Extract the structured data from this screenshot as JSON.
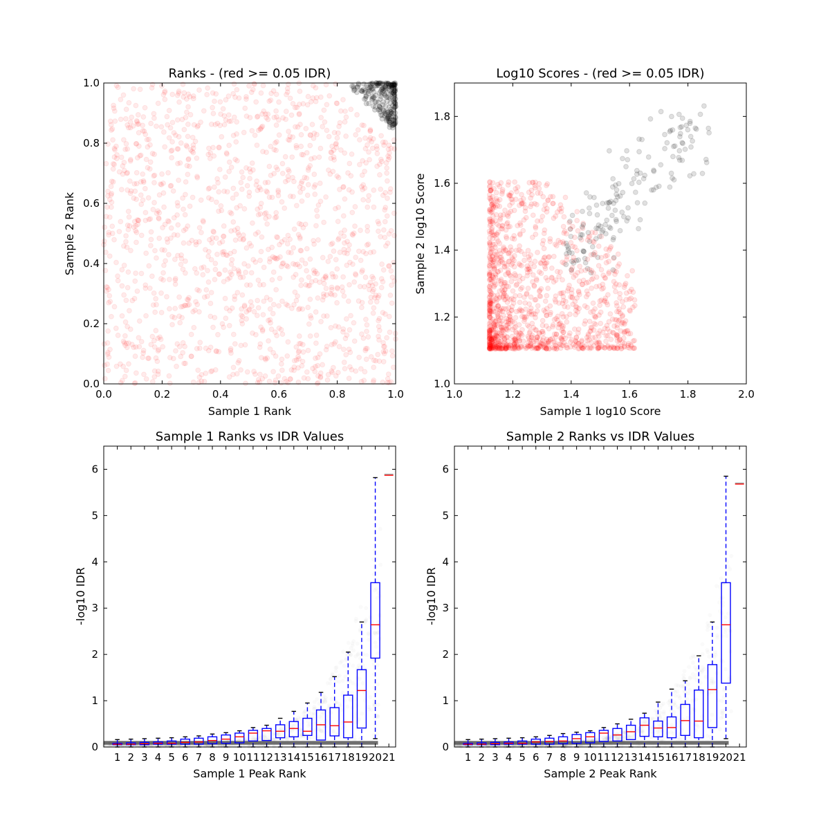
{
  "chart_data": [
    {
      "type": "scatter",
      "title": "Ranks - (red >= 0.05 IDR)",
      "xlabel": "Sample 1 Rank",
      "ylabel": "Sample 2 Rank",
      "xlim": [
        0.0,
        1.0
      ],
      "ylim": [
        0.0,
        1.0
      ],
      "xticks": [
        "0.0",
        "0.2",
        "0.4",
        "0.6",
        "0.8",
        "1.0"
      ],
      "yticks": [
        "0.0",
        "0.2",
        "0.4",
        "0.6",
        "0.8",
        "1.0"
      ],
      "series": [
        {
          "color": "#ff0000",
          "opacity": 0.08,
          "description_values": "uniform over [0,1]x[0,1] excluding top-right corner",
          "region": {
            "x": [
              0.0,
              1.0
            ],
            "y": [
              0.0,
              1.0
            ]
          },
          "count": 1400
        },
        {
          "color": "#000000",
          "opacity": 0.15,
          "region": {
            "x": [
              0.85,
              1.0
            ],
            "y": [
              0.85,
              1.0
            ]
          },
          "count": 260
        }
      ]
    },
    {
      "type": "scatter",
      "title": "Log10 Scores - (red >= 0.05 IDR)",
      "xlabel": "Sample 1 log10 Score",
      "ylabel": "Sample 2 log10 Score",
      "xlim": [
        1.0,
        2.0
      ],
      "ylim": [
        1.0,
        1.9
      ],
      "xticks": [
        "1.0",
        "1.2",
        "1.4",
        "1.6",
        "1.8",
        "2.0"
      ],
      "yticks": [
        "1.0",
        "1.2",
        "1.4",
        "1.6",
        "1.8"
      ],
      "series": [
        {
          "color": "#ff0000",
          "opacity": 0.1,
          "region": {
            "x": [
              1.12,
              1.62
            ],
            "y": [
              1.1,
              1.62
            ]
          },
          "count": 1300
        },
        {
          "color": "#000000",
          "opacity": 0.12,
          "region": {
            "x": [
              1.38,
              1.9
            ],
            "y": [
              1.33,
              1.84
            ]
          },
          "count": 170
        }
      ]
    },
    {
      "type": "box",
      "title": "Sample 1 Ranks vs IDR Values",
      "xlabel": "Sample 1 Peak Rank",
      "ylabel": "-log10 IDR",
      "ylim": [
        0,
        6.5
      ],
      "yticks": [
        "0",
        "1",
        "2",
        "3",
        "4",
        "5",
        "6"
      ],
      "categories": [
        "1",
        "2",
        "3",
        "4",
        "5",
        "6",
        "7",
        "8",
        "9",
        "10",
        "11",
        "12",
        "13",
        "14",
        "15",
        "16",
        "17",
        "18",
        "19",
        "20",
        "21"
      ],
      "boxes": [
        {
          "q1": 0.05,
          "median": 0.06,
          "q3": 0.08,
          "whislo": 0.0,
          "whishi": 0.16
        },
        {
          "q1": 0.05,
          "median": 0.06,
          "q3": 0.09,
          "whislo": 0.0,
          "whishi": 0.17
        },
        {
          "q1": 0.05,
          "median": 0.07,
          "q3": 0.1,
          "whislo": 0.0,
          "whishi": 0.18
        },
        {
          "q1": 0.06,
          "median": 0.08,
          "q3": 0.11,
          "whislo": 0.0,
          "whishi": 0.19
        },
        {
          "q1": 0.06,
          "median": 0.08,
          "q3": 0.13,
          "whislo": 0.0,
          "whishi": 0.2
        },
        {
          "q1": 0.06,
          "median": 0.1,
          "q3": 0.17,
          "whislo": 0.0,
          "whishi": 0.22
        },
        {
          "q1": 0.06,
          "median": 0.11,
          "q3": 0.19,
          "whislo": 0.0,
          "whishi": 0.24
        },
        {
          "q1": 0.07,
          "median": 0.14,
          "q3": 0.22,
          "whislo": 0.0,
          "whishi": 0.28
        },
        {
          "q1": 0.08,
          "median": 0.17,
          "q3": 0.26,
          "whislo": 0.0,
          "whishi": 0.31
        },
        {
          "q1": 0.09,
          "median": 0.22,
          "q3": 0.3,
          "whislo": 0.0,
          "whishi": 0.35
        },
        {
          "q1": 0.13,
          "median": 0.3,
          "q3": 0.36,
          "whislo": 0.0,
          "whishi": 0.42
        },
        {
          "q1": 0.14,
          "median": 0.35,
          "q3": 0.4,
          "whislo": 0.0,
          "whishi": 0.47
        },
        {
          "q1": 0.2,
          "median": 0.34,
          "q3": 0.48,
          "whislo": 0.0,
          "whishi": 0.62
        },
        {
          "q1": 0.22,
          "median": 0.4,
          "q3": 0.55,
          "whislo": 0.0,
          "whishi": 0.77
        },
        {
          "q1": 0.25,
          "median": 0.34,
          "q3": 0.62,
          "whislo": 0.0,
          "whishi": 0.95
        },
        {
          "q1": 0.15,
          "median": 0.48,
          "q3": 0.8,
          "whislo": 0.0,
          "whishi": 1.18
        },
        {
          "q1": 0.24,
          "median": 0.46,
          "q3": 0.85,
          "whislo": 0.0,
          "whishi": 1.52
        },
        {
          "q1": 0.2,
          "median": 0.54,
          "q3": 1.12,
          "whislo": 0.0,
          "whishi": 2.05
        },
        {
          "q1": 0.41,
          "median": 1.22,
          "q3": 1.67,
          "whislo": 0.0,
          "whishi": 2.7
        },
        {
          "q1": 1.92,
          "median": 2.64,
          "q3": 3.55,
          "whislo": 0.18,
          "whishi": 5.82
        },
        {
          "q1": 5.87,
          "median": 5.87,
          "q3": 5.87,
          "whislo": 5.87,
          "whishi": 5.87
        }
      ]
    },
    {
      "type": "box",
      "title": "Sample 2 Ranks vs IDR Values",
      "xlabel": "Sample 2 Peak Rank",
      "ylabel": "-log10 IDR",
      "ylim": [
        0,
        6.5
      ],
      "yticks": [
        "0",
        "1",
        "2",
        "3",
        "4",
        "5",
        "6"
      ],
      "categories": [
        "1",
        "2",
        "3",
        "4",
        "5",
        "6",
        "7",
        "8",
        "9",
        "10",
        "11",
        "12",
        "13",
        "14",
        "15",
        "16",
        "17",
        "18",
        "19",
        "20",
        "21"
      ],
      "boxes": [
        {
          "q1": 0.05,
          "median": 0.06,
          "q3": 0.08,
          "whislo": 0.0,
          "whishi": 0.16
        },
        {
          "q1": 0.05,
          "median": 0.06,
          "q3": 0.09,
          "whislo": 0.0,
          "whishi": 0.17
        },
        {
          "q1": 0.05,
          "median": 0.07,
          "q3": 0.1,
          "whislo": 0.0,
          "whishi": 0.18
        },
        {
          "q1": 0.06,
          "median": 0.08,
          "q3": 0.11,
          "whislo": 0.0,
          "whishi": 0.19
        },
        {
          "q1": 0.06,
          "median": 0.08,
          "q3": 0.13,
          "whislo": 0.0,
          "whishi": 0.2
        },
        {
          "q1": 0.06,
          "median": 0.11,
          "q3": 0.17,
          "whislo": 0.0,
          "whishi": 0.22
        },
        {
          "q1": 0.06,
          "median": 0.12,
          "q3": 0.19,
          "whislo": 0.0,
          "whishi": 0.25
        },
        {
          "q1": 0.07,
          "median": 0.13,
          "q3": 0.22,
          "whislo": 0.0,
          "whishi": 0.29
        },
        {
          "q1": 0.08,
          "median": 0.18,
          "q3": 0.27,
          "whislo": 0.0,
          "whishi": 0.32
        },
        {
          "q1": 0.09,
          "median": 0.22,
          "q3": 0.31,
          "whislo": 0.0,
          "whishi": 0.35
        },
        {
          "q1": 0.12,
          "median": 0.3,
          "q3": 0.36,
          "whislo": 0.0,
          "whishi": 0.42
        },
        {
          "q1": 0.13,
          "median": 0.26,
          "q3": 0.4,
          "whislo": 0.0,
          "whishi": 0.5
        },
        {
          "q1": 0.16,
          "median": 0.33,
          "q3": 0.47,
          "whislo": 0.0,
          "whishi": 0.6
        },
        {
          "q1": 0.23,
          "median": 0.47,
          "q3": 0.63,
          "whislo": 0.0,
          "whishi": 0.73
        },
        {
          "q1": 0.22,
          "median": 0.41,
          "q3": 0.56,
          "whislo": 0.0,
          "whishi": 0.97
        },
        {
          "q1": 0.2,
          "median": 0.42,
          "q3": 0.65,
          "whislo": 0.0,
          "whishi": 1.25
        },
        {
          "q1": 0.25,
          "median": 0.57,
          "q3": 0.92,
          "whislo": 0.0,
          "whishi": 1.43
        },
        {
          "q1": 0.2,
          "median": 0.56,
          "q3": 1.23,
          "whislo": 0.0,
          "whishi": 1.97
        },
        {
          "q1": 0.42,
          "median": 1.24,
          "q3": 1.78,
          "whislo": 0.0,
          "whishi": 2.7
        },
        {
          "q1": 1.38,
          "median": 2.64,
          "q3": 3.55,
          "whislo": 0.18,
          "whishi": 5.85
        },
        {
          "q1": 5.68,
          "median": 5.68,
          "q3": 5.68,
          "whislo": 5.68,
          "whishi": 5.68
        }
      ]
    }
  ]
}
